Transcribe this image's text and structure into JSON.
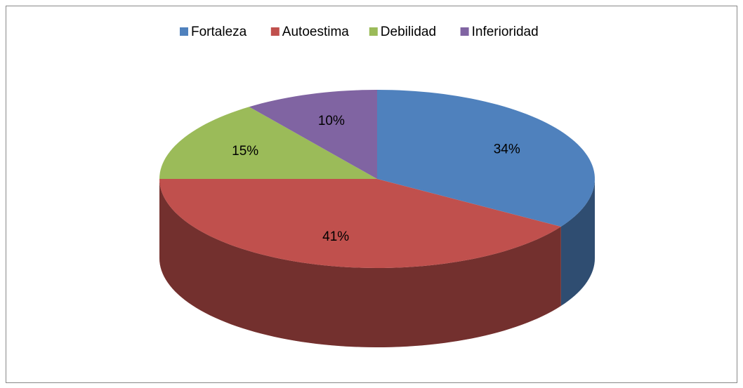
{
  "chart_data": {
    "type": "pie3d",
    "categories": [
      "Fortaleza",
      "Autoestima",
      "Debilidad",
      "Inferioridad"
    ],
    "values": [
      34,
      41,
      15,
      10
    ],
    "value_labels": [
      "34%",
      "41%",
      "15%",
      "10%"
    ],
    "colors": [
      "#4f81bd",
      "#c0504d",
      "#9bbb59",
      "#8064a2"
    ],
    "legend": "top"
  }
}
